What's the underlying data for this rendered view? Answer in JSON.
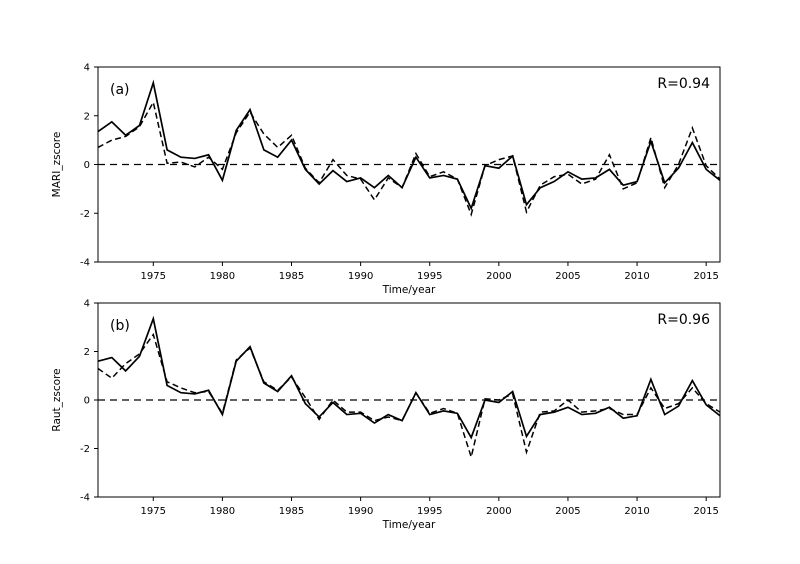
{
  "figure": {
    "background": "#ffffff",
    "line_color": "#000000"
  },
  "chart_data": [
    {
      "type": "line",
      "panel_tag": "(a)",
      "annotation": "R=0.94",
      "ylabel": "MARI_zscore",
      "xlabel": "Time/year",
      "ylim": [
        -4,
        4
      ],
      "yticks": [
        4,
        2,
        0,
        -2,
        -4
      ],
      "xlim": [
        1971,
        2016
      ],
      "xticks": [
        1975,
        1980,
        1985,
        1990,
        1995,
        2000,
        2005,
        2010,
        2015
      ],
      "grid": false,
      "legend": "none",
      "zero_line_style": "dashed",
      "x": [
        1971,
        1972,
        1973,
        1974,
        1975,
        1976,
        1977,
        1978,
        1979,
        1980,
        1981,
        1982,
        1983,
        1984,
        1985,
        1986,
        1987,
        1988,
        1989,
        1990,
        1991,
        1992,
        1993,
        1994,
        1995,
        1996,
        1997,
        1998,
        1999,
        2000,
        2001,
        2002,
        2003,
        2004,
        2005,
        2006,
        2007,
        2008,
        2009,
        2010,
        2011,
        2012,
        2013,
        2014,
        2015,
        2016
      ],
      "series": [
        {
          "name": "solid-line",
          "style": "solid",
          "values": [
            1.35,
            1.75,
            1.2,
            1.6,
            3.35,
            0.6,
            0.3,
            0.25,
            0.4,
            -0.65,
            1.4,
            2.25,
            0.6,
            0.3,
            1.0,
            -0.2,
            -0.8,
            -0.25,
            -0.7,
            -0.55,
            -0.95,
            -0.45,
            -0.95,
            0.3,
            -0.55,
            -0.45,
            -0.6,
            -1.8,
            -0.05,
            -0.15,
            0.35,
            -1.65,
            -0.95,
            -0.7,
            -0.3,
            -0.6,
            -0.55,
            -0.2,
            -0.85,
            -0.7,
            0.95,
            -0.75,
            -0.15,
            0.9,
            -0.2,
            -0.65
          ]
        },
        {
          "name": "dashed-line",
          "style": "dashed",
          "values": [
            0.7,
            1.0,
            1.15,
            1.55,
            2.55,
            0.05,
            0.1,
            -0.1,
            0.3,
            -0.2,
            1.3,
            2.15,
            1.25,
            0.7,
            1.2,
            -0.15,
            -0.75,
            0.2,
            -0.45,
            -0.6,
            -1.45,
            -0.55,
            -0.95,
            0.45,
            -0.5,
            -0.3,
            -0.6,
            -2.05,
            -0.05,
            0.2,
            0.35,
            -1.95,
            -0.85,
            -0.5,
            -0.4,
            -0.8,
            -0.6,
            0.4,
            -1.0,
            -0.75,
            1.1,
            -0.95,
            0.0,
            1.5,
            -0.05,
            -0.6
          ]
        }
      ]
    },
    {
      "type": "line",
      "panel_tag": "(b)",
      "annotation": "R=0.96",
      "ylabel": "Raut_zscore",
      "xlabel": "Time/year",
      "ylim": [
        -4,
        4
      ],
      "yticks": [
        4,
        2,
        0,
        -2,
        -4
      ],
      "xlim": [
        1971,
        2016
      ],
      "xticks": [
        1975,
        1980,
        1985,
        1990,
        1995,
        2000,
        2005,
        2010,
        2015
      ],
      "grid": false,
      "legend": "none",
      "zero_line_style": "dashed",
      "x": [
        1971,
        1972,
        1973,
        1974,
        1975,
        1976,
        1977,
        1978,
        1979,
        1980,
        1981,
        1982,
        1983,
        1984,
        1985,
        1986,
        1987,
        1988,
        1989,
        1990,
        1991,
        1992,
        1993,
        1994,
        1995,
        1996,
        1997,
        1998,
        1999,
        2000,
        2001,
        2002,
        2003,
        2004,
        2005,
        2006,
        2007,
        2008,
        2009,
        2010,
        2011,
        2012,
        2013,
        2014,
        2015,
        2016
      ],
      "series": [
        {
          "name": "solid-line",
          "style": "solid",
          "values": [
            1.6,
            1.75,
            1.2,
            1.8,
            3.35,
            0.6,
            0.3,
            0.25,
            0.4,
            -0.6,
            1.6,
            2.2,
            0.7,
            0.35,
            1.0,
            -0.15,
            -0.7,
            -0.1,
            -0.6,
            -0.55,
            -0.95,
            -0.6,
            -0.85,
            0.3,
            -0.6,
            -0.45,
            -0.55,
            -1.55,
            0.0,
            -0.1,
            0.35,
            -1.5,
            -0.6,
            -0.5,
            -0.3,
            -0.6,
            -0.55,
            -0.3,
            -0.75,
            -0.65,
            0.85,
            -0.6,
            -0.25,
            0.8,
            -0.2,
            -0.65
          ]
        },
        {
          "name": "dashed-line",
          "style": "dashed",
          "values": [
            1.3,
            0.9,
            1.5,
            1.9,
            2.7,
            0.75,
            0.5,
            0.3,
            0.35,
            -0.55,
            1.65,
            2.15,
            0.75,
            0.4,
            0.95,
            0.1,
            -0.8,
            0.0,
            -0.5,
            -0.5,
            -0.85,
            -0.7,
            -0.85,
            0.3,
            -0.55,
            -0.35,
            -0.55,
            -2.35,
            0.05,
            0.0,
            0.25,
            -2.15,
            -0.5,
            -0.45,
            0.0,
            -0.5,
            -0.45,
            -0.35,
            -0.6,
            -0.6,
            0.5,
            -0.35,
            -0.15,
            0.5,
            -0.15,
            -0.5
          ]
        }
      ]
    }
  ]
}
